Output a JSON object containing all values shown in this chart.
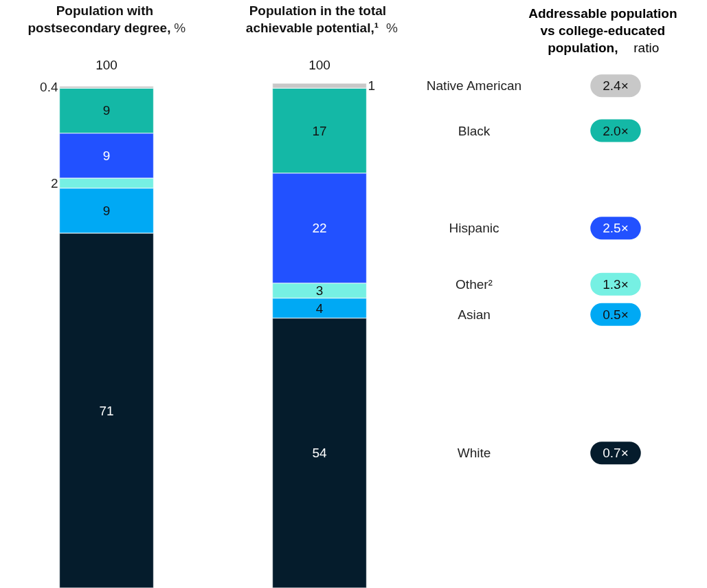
{
  "chart_data": {
    "type": "bar",
    "stacked": true,
    "data_labels": true,
    "legend": false,
    "categories": [
      "Population with postsecondary degree, %",
      "Population in the total achievable potential,¹ %"
    ],
    "series": [
      {
        "name": "White",
        "color": "#051c2c",
        "values": [
          71,
          54
        ]
      },
      {
        "name": "Asian",
        "color": "#00a9f4",
        "values": [
          9,
          4
        ]
      },
      {
        "name": "Other²",
        "color": "#76f0e3",
        "values": [
          2,
          3
        ]
      },
      {
        "name": "Hispanic",
        "color": "#2251ff",
        "values": [
          9,
          22
        ]
      },
      {
        "name": "Black",
        "color": "#14b8a6",
        "values": [
          9,
          17
        ]
      },
      {
        "name": "Native American",
        "color": "#c8c8c8",
        "values": [
          0.4,
          1
        ]
      }
    ],
    "totals": [
      "100",
      "100"
    ],
    "annotations": [
      "Addressable population vs college-educated population, ratio",
      "0.7×",
      "0.5×",
      "1.3×",
      "2.5×",
      "2.0×",
      "2.4×"
    ]
  }
}
